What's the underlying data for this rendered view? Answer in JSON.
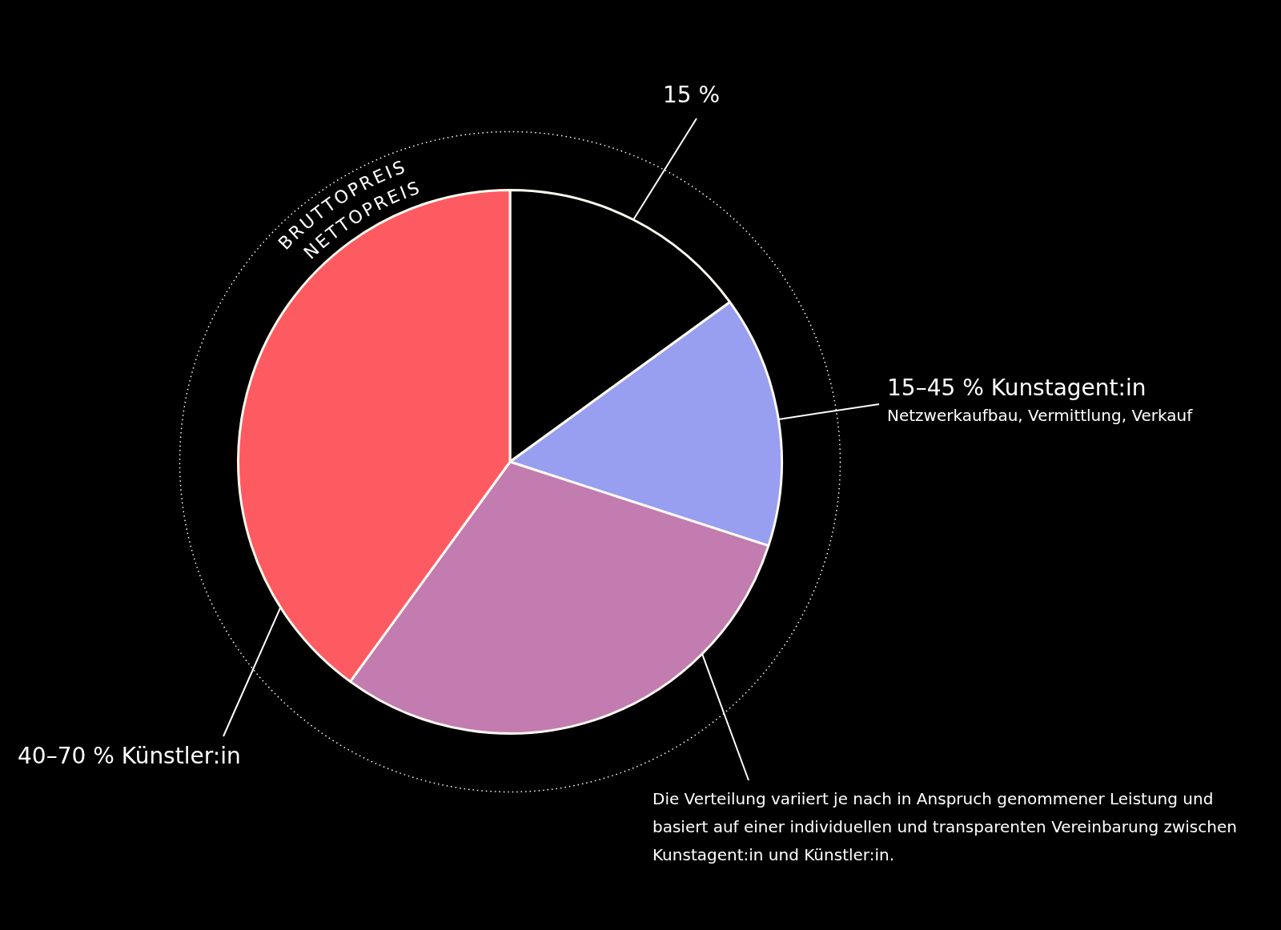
{
  "chart_data": {
    "type": "pie",
    "categories": [
      "15 %",
      "15–45 % Kunstagent:in",
      null,
      "40–70 % Künstler:in"
    ],
    "values": [
      15,
      15,
      30,
      40
    ],
    "colors": [
      "#000000",
      "#989ff0",
      "#c27cb0",
      "#fe5a62"
    ],
    "legend": false,
    "annotations": [
      "BRUTTOPREIS",
      "NETTOPREIS",
      "Netzwerkaufbau, Vermittlung, Verkauf",
      "Die Verteilung variiert je nach in Anspruch genommener Leistung und basiert auf einer individuellen und transparenten Vereinbarung zwischen Kunstagent:in und Künstler:in."
    ]
  }
}
